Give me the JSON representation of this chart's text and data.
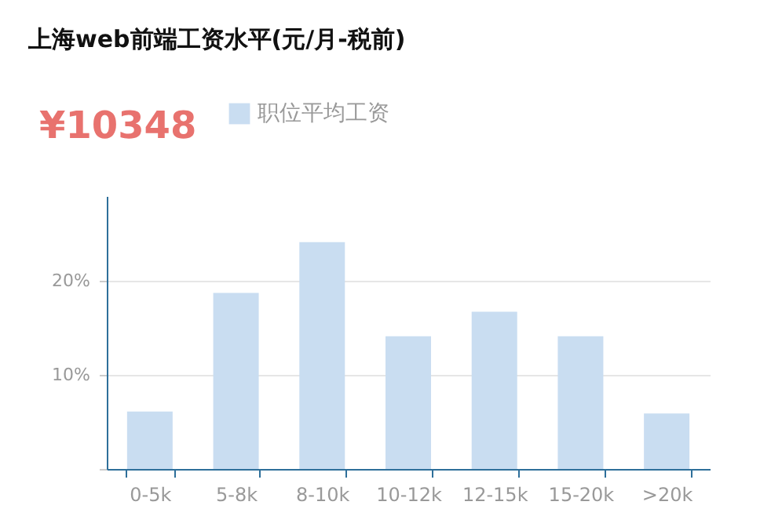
{
  "chart_data": {
    "type": "bar",
    "title": "上海web前端工资水平(元/月-税前)",
    "annotations": [
      "¥10348"
    ],
    "categories": [
      "0-5k",
      "5-8k",
      "8-10k",
      "10-12k",
      "12-15k",
      "15-20k",
      ">20k"
    ],
    "series": [
      {
        "name": "职位平均工资",
        "color": "#c9ddf1",
        "values": [
          6.1,
          18.7,
          24.1,
          14.1,
          16.7,
          14.1,
          5.9
        ]
      }
    ],
    "ylim": [
      0,
      29
    ],
    "yticks": [
      {
        "value": 0,
        "label": null
      },
      {
        "value": 10,
        "label": "10%"
      },
      {
        "value": 20,
        "label": "20%"
      }
    ],
    "grid": "y",
    "legend": "top left"
  }
}
